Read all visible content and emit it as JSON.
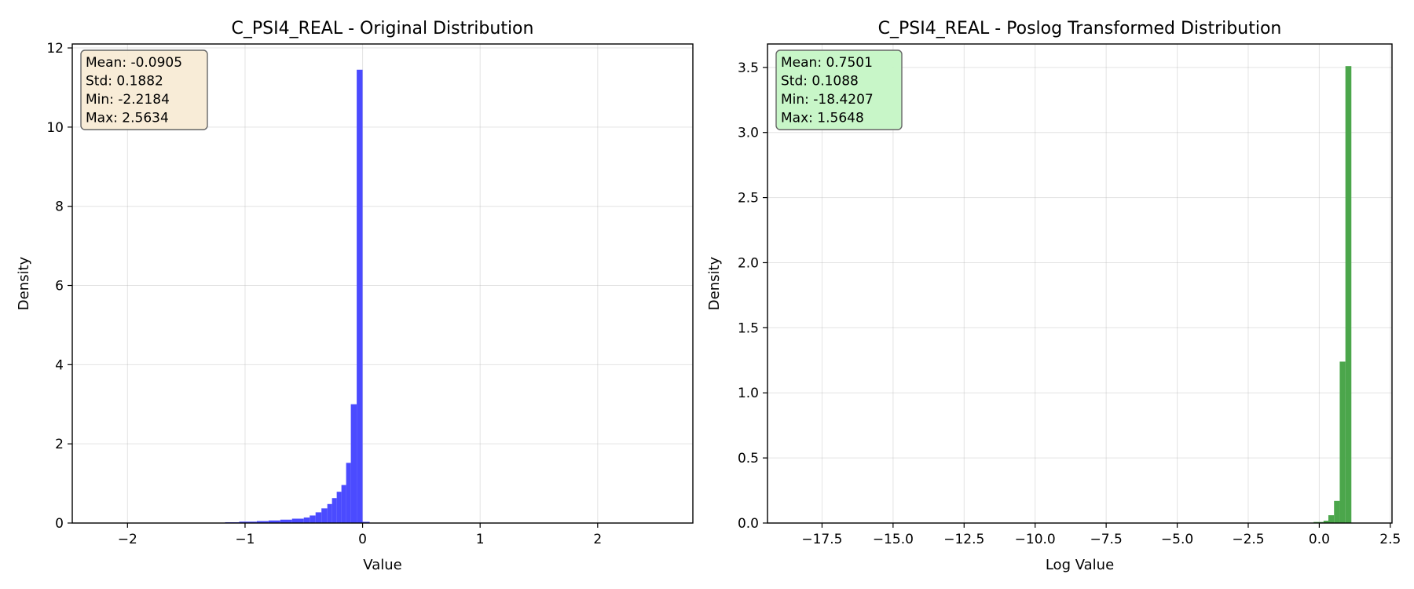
{
  "chart_data": [
    {
      "type": "histogram",
      "title": "C_PSI4_REAL - Original Distribution",
      "xlabel": "Value",
      "ylabel": "Density",
      "xlim": [
        -2.47,
        2.81
      ],
      "ylim": [
        0,
        12.1
      ],
      "xticks": [
        -2,
        -1,
        0,
        1,
        2
      ],
      "xtick_labels": [
        "−2",
        "−1",
        "0",
        "1",
        "2"
      ],
      "yticks": [
        0,
        2,
        4,
        6,
        8,
        10,
        12
      ],
      "ytick_labels": [
        "0",
        "2",
        "4",
        "6",
        "8",
        "10",
        "12"
      ],
      "grid": true,
      "bar_color": "#4b4bff",
      "stats_box_color": "#f8ebd5",
      "stats": [
        "Mean: -0.0905",
        "Std: 0.1882",
        "Min: -2.2184",
        "Max: 2.5634"
      ],
      "bins": [
        {
          "x0": -2.218,
          "x1": -1.17,
          "y": 0.004
        },
        {
          "x0": -1.17,
          "x1": -1.05,
          "y": 0.02
        },
        {
          "x0": -1.05,
          "x1": -0.9,
          "y": 0.035
        },
        {
          "x0": -0.9,
          "x1": -0.8,
          "y": 0.05
        },
        {
          "x0": -0.8,
          "x1": -0.7,
          "y": 0.065
        },
        {
          "x0": -0.7,
          "x1": -0.6,
          "y": 0.085
        },
        {
          "x0": -0.6,
          "x1": -0.5,
          "y": 0.11
        },
        {
          "x0": -0.5,
          "x1": -0.45,
          "y": 0.14
        },
        {
          "x0": -0.45,
          "x1": -0.4,
          "y": 0.19
        },
        {
          "x0": -0.4,
          "x1": -0.35,
          "y": 0.27
        },
        {
          "x0": -0.35,
          "x1": -0.3,
          "y": 0.37
        },
        {
          "x0": -0.3,
          "x1": -0.26,
          "y": 0.48
        },
        {
          "x0": -0.26,
          "x1": -0.22,
          "y": 0.63
        },
        {
          "x0": -0.22,
          "x1": -0.18,
          "y": 0.79
        },
        {
          "x0": -0.18,
          "x1": -0.14,
          "y": 0.96
        },
        {
          "x0": -0.14,
          "x1": -0.1,
          "y": 1.52
        },
        {
          "x0": -0.1,
          "x1": -0.05,
          "y": 3.0
        },
        {
          "x0": -0.05,
          "x1": 0.0,
          "y": 11.45
        },
        {
          "x0": 0.0,
          "x1": 0.06,
          "y": 0.03
        },
        {
          "x0": 0.06,
          "x1": 2.563,
          "y": 0.002
        }
      ]
    },
    {
      "type": "histogram",
      "title": "C_PSI4_REAL - Poslog Transformed Distribution",
      "xlabel": "Log Value",
      "ylabel": "Density",
      "xlim": [
        -19.42,
        2.56
      ],
      "ylim": [
        0,
        3.68
      ],
      "xticks": [
        -17.5,
        -15.0,
        -12.5,
        -10.0,
        -7.5,
        -5.0,
        -2.5,
        0.0,
        2.5
      ],
      "xtick_labels": [
        "−17.5",
        "−15.0",
        "−12.5",
        "−10.0",
        "−7.5",
        "−5.0",
        "−2.5",
        "0.0",
        "2.5"
      ],
      "yticks": [
        0.0,
        0.5,
        1.0,
        1.5,
        2.0,
        2.5,
        3.0,
        3.5
      ],
      "ytick_labels": [
        "0.0",
        "0.5",
        "1.0",
        "1.5",
        "2.0",
        "2.5",
        "3.0",
        "3.5"
      ],
      "grid": true,
      "bar_color": "#4ba64b",
      "stats_box_color": "#c5f5c5",
      "stats": [
        "Mean: 0.7501",
        "Std: 0.1088",
        "Min: -18.4207",
        "Max: 1.5648"
      ],
      "bins": [
        {
          "x0": -18.42,
          "x1": -0.2,
          "y": 0.001
        },
        {
          "x0": -0.2,
          "x1": 0.15,
          "y": 0.008
        },
        {
          "x0": 0.15,
          "x1": 0.32,
          "y": 0.018
        },
        {
          "x0": 0.32,
          "x1": 0.52,
          "y": 0.06
        },
        {
          "x0": 0.52,
          "x1": 0.72,
          "y": 0.17
        },
        {
          "x0": 0.72,
          "x1": 0.92,
          "y": 1.24
        },
        {
          "x0": 0.92,
          "x1": 1.13,
          "y": 3.51
        },
        {
          "x0": 1.13,
          "x1": 1.56,
          "y": 0.001
        }
      ]
    }
  ]
}
